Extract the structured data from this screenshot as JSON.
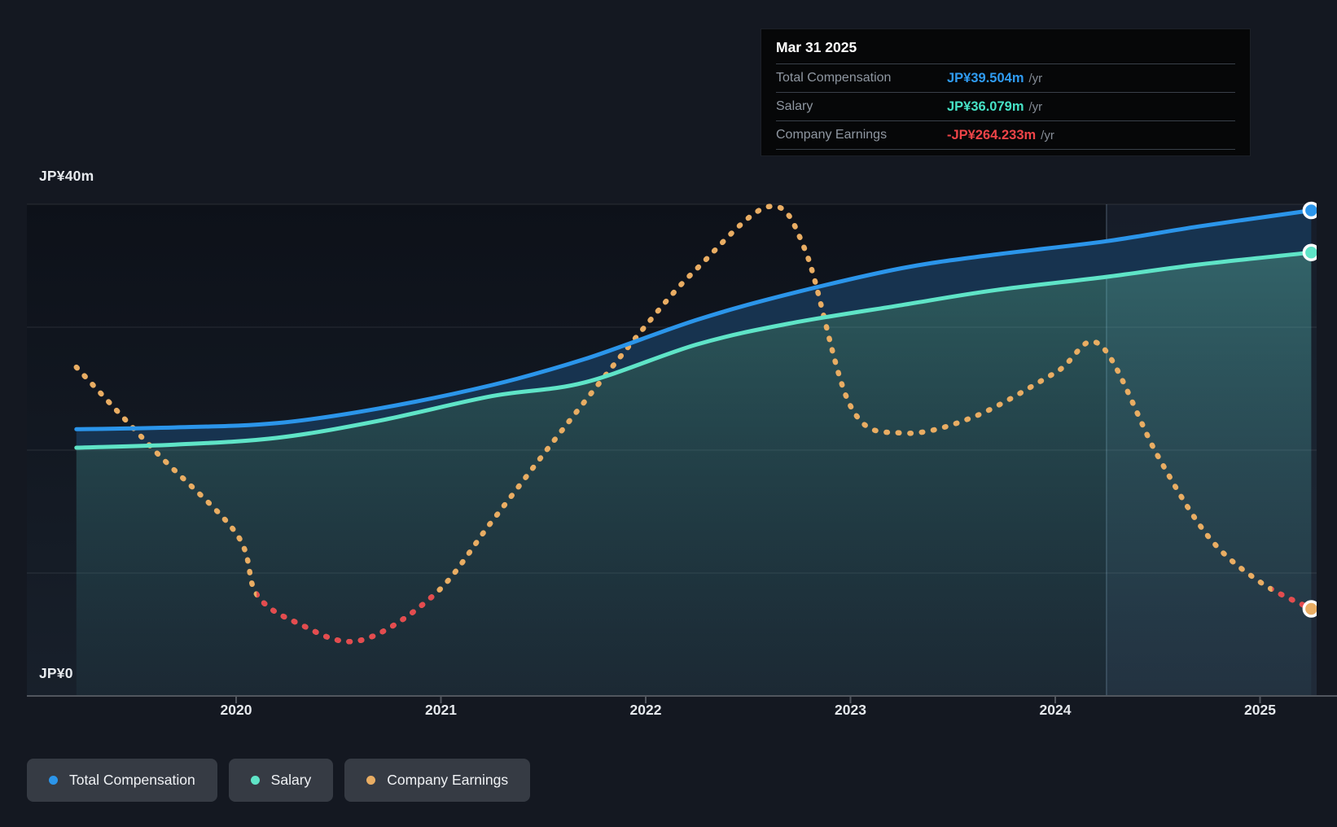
{
  "tooltip": {
    "title": "Mar 31 2025",
    "rows": [
      {
        "label": "Total Compensation",
        "value": "JP¥39.504m",
        "suffix": "/yr",
        "color": "#2f9bf1"
      },
      {
        "label": "Salary",
        "value": "JP¥36.079m",
        "suffix": "/yr",
        "color": "#46e2c6"
      },
      {
        "label": "Company Earnings",
        "value": "-JP¥264.233m",
        "suffix": "/yr",
        "color": "#ee4448"
      }
    ]
  },
  "legend": {
    "items": [
      {
        "label": "Total Compensation",
        "color": "#2b95ea"
      },
      {
        "label": "Salary",
        "color": "#5fe4c7"
      },
      {
        "label": "Company Earnings",
        "color": "#e9ad63"
      }
    ]
  },
  "colors": {
    "page_bg": "#141821",
    "plot_bg_top": "#0d1119",
    "plot_bg_bottom": "#18202b",
    "gridline": "rgba(255,255,255,0.10)",
    "zero_axis_line": "#51565e",
    "highlight_band": "rgba(140,190,235,0.07)",
    "highlight_band_edge": "rgba(170,205,235,0.25)",
    "total_compensation": "#2b95ea",
    "salary": "#5fe4c7",
    "between_fill": "#17334f",
    "salary_fill_top": "rgba(96,213,205,0.42)",
    "salary_fill_bottom": "rgba(80,180,190,0.06)",
    "earnings_positive": "#e9ad63",
    "earnings_negative": "#e44b4f",
    "dot_ring": "#ffffff"
  },
  "chart_data": {
    "type": "area",
    "title": "",
    "y_axis": {
      "top_label": "JP¥40m",
      "bottom_label": "JP¥0",
      "unit": "JP¥ millions per year",
      "min": 0,
      "max": 40,
      "gridline_values": [
        40,
        30,
        20,
        10,
        0
      ]
    },
    "x_axis": {
      "tick_years": [
        "2020",
        "2021",
        "2022",
        "2023",
        "2024",
        "2025"
      ],
      "start": 2019.22,
      "end": 2025.3
    },
    "highlight_period": {
      "from": 2024.25,
      "to": 2025.3
    },
    "earnings_display": {
      "zero_line_y": 730,
      "millions_per_pixel": 14.7
    },
    "series": [
      {
        "name": "Total Compensation",
        "type": "line-area",
        "color": "#2b95ea",
        "unit": "JP¥m",
        "points": [
          [
            2019.22,
            21.7
          ],
          [
            2019.7,
            21.85
          ],
          [
            2020.2,
            22.2
          ],
          [
            2020.7,
            23.4
          ],
          [
            2021.25,
            25.3
          ],
          [
            2021.7,
            27.4
          ],
          [
            2022.25,
            30.6
          ],
          [
            2022.7,
            32.7
          ],
          [
            2023.25,
            34.8
          ],
          [
            2023.7,
            35.9
          ],
          [
            2024.25,
            37.0
          ],
          [
            2024.7,
            38.2
          ],
          [
            2025.25,
            39.504
          ]
        ]
      },
      {
        "name": "Salary",
        "type": "line-area",
        "color": "#5fe4c7",
        "unit": "JP¥m",
        "points": [
          [
            2019.22,
            20.2
          ],
          [
            2019.7,
            20.45
          ],
          [
            2020.2,
            21.0
          ],
          [
            2020.7,
            22.4
          ],
          [
            2021.25,
            24.4
          ],
          [
            2021.7,
            25.5
          ],
          [
            2022.25,
            28.6
          ],
          [
            2022.7,
            30.3
          ],
          [
            2023.25,
            31.8
          ],
          [
            2023.7,
            33.0
          ],
          [
            2024.25,
            34.1
          ],
          [
            2024.7,
            35.1
          ],
          [
            2025.25,
            36.079
          ]
        ]
      },
      {
        "name": "Company Earnings",
        "type": "dotted-line",
        "color": "#e9ad63",
        "negative_color": "#e44b4f",
        "unit": "JP¥m (approx, unlabeled scale)",
        "points": [
          [
            2019.22,
            4100
          ],
          [
            2019.6,
            2600
          ],
          [
            2020.0,
            1100
          ],
          [
            2020.1,
            0
          ],
          [
            2020.3,
            -520
          ],
          [
            2020.6,
            -840
          ],
          [
            2020.97,
            0
          ],
          [
            2021.25,
            1320
          ],
          [
            2021.6,
            3000
          ],
          [
            2022.0,
            4850
          ],
          [
            2022.25,
            5880
          ],
          [
            2022.6,
            7000
          ],
          [
            2022.78,
            6200
          ],
          [
            2023.0,
            3400
          ],
          [
            2023.25,
            2910
          ],
          [
            2023.6,
            3200
          ],
          [
            2024.0,
            4000
          ],
          [
            2024.22,
            4500
          ],
          [
            2024.5,
            2500
          ],
          [
            2024.75,
            1030
          ],
          [
            2025.0,
            220
          ],
          [
            2025.25,
            -264.233
          ]
        ],
        "negative_ranges": [
          [
            2020.1,
            2020.97
          ],
          [
            2025.06,
            2025.3
          ]
        ]
      }
    ]
  }
}
